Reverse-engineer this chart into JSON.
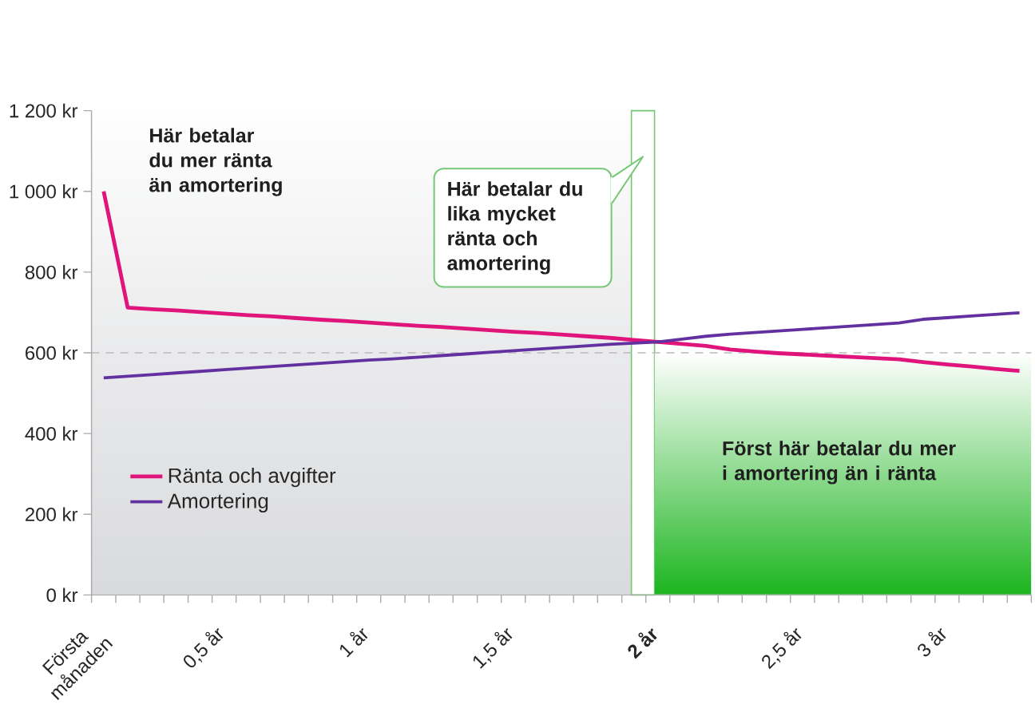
{
  "chart_data": {
    "type": "line",
    "x": [
      0.125,
      0.208,
      0.292,
      0.375,
      0.458,
      0.542,
      0.625,
      0.708,
      0.792,
      0.875,
      0.958,
      1.042,
      1.125,
      1.208,
      1.292,
      1.375,
      1.458,
      1.542,
      1.625,
      1.708,
      1.792,
      1.875,
      1.958,
      2.042,
      2.125,
      2.208,
      2.292,
      2.375,
      2.458,
      2.542,
      2.625,
      2.708,
      2.792,
      2.875,
      2.958,
      3.042,
      3.125,
      3.208,
      3.292
    ],
    "xlim": [
      0.083,
      3.333
    ],
    "xticks": [
      {
        "value": 0.083,
        "label": "Första månaden"
      },
      {
        "value": 0.167,
        "label": null
      },
      {
        "value": 0.25,
        "label": null
      },
      {
        "value": 0.333,
        "label": null
      },
      {
        "value": 0.417,
        "label": null
      },
      {
        "value": 0.5,
        "label": "0,5 år"
      },
      {
        "value": 0.583,
        "label": null
      },
      {
        "value": 0.667,
        "label": null
      },
      {
        "value": 0.75,
        "label": null
      },
      {
        "value": 0.833,
        "label": null
      },
      {
        "value": 0.917,
        "label": null
      },
      {
        "value": 1,
        "label": "1 år"
      },
      {
        "value": 1.083,
        "label": null
      },
      {
        "value": 1.167,
        "label": null
      },
      {
        "value": 1.25,
        "label": null
      },
      {
        "value": 1.333,
        "label": null
      },
      {
        "value": 1.417,
        "label": null
      },
      {
        "value": 1.5,
        "label": "1,5 år"
      },
      {
        "value": 1.583,
        "label": null
      },
      {
        "value": 1.667,
        "label": null
      },
      {
        "value": 1.75,
        "label": null
      },
      {
        "value": 1.833,
        "label": null
      },
      {
        "value": 1.917,
        "label": null
      },
      {
        "value": 2,
        "label": "**2 år**"
      },
      {
        "value": 2.083,
        "label": null
      },
      {
        "value": 2.167,
        "label": null
      },
      {
        "value": 2.25,
        "label": null
      },
      {
        "value": 2.333,
        "label": null
      },
      {
        "value": 2.417,
        "label": null
      },
      {
        "value": 2.5,
        "label": "2,5 år"
      },
      {
        "value": 2.583,
        "label": null
      },
      {
        "value": 2.667,
        "label": null
      },
      {
        "value": 2.75,
        "label": null
      },
      {
        "value": 2.833,
        "label": null
      },
      {
        "value": 2.917,
        "label": null
      },
      {
        "value": 3,
        "label": "3 år"
      },
      {
        "value": 3.083,
        "label": null
      },
      {
        "value": 3.167,
        "label": null
      },
      {
        "value": 3.25,
        "label": null
      },
      {
        "value": 3.333,
        "label": null
      }
    ],
    "ylim": [
      0,
      1200
    ],
    "yticks": [
      {
        "value": 0,
        "label": "0 kr"
      },
      {
        "value": 200,
        "label": "200 kr"
      },
      {
        "value": 400,
        "label": "400 kr"
      },
      {
        "value": 600,
        "label": "600 kr"
      },
      {
        "value": 800,
        "label": "800 kr"
      },
      {
        "value": 1000,
        "label": "1 000 kr"
      },
      {
        "value": 1200,
        "label": "1 200 kr"
      }
    ],
    "series": [
      {
        "name": "Ränta och avgifter",
        "color": "#e0157c",
        "values": [
          1000,
          712,
          708,
          705,
          701,
          697,
          693,
          690,
          686,
          682,
          679,
          675,
          671,
          667,
          664,
          660,
          656,
          652,
          649,
          645,
          641,
          637,
          632,
          627,
          622,
          617,
          608,
          603,
          599,
          596,
          593,
          590,
          587,
          584,
          577,
          571,
          566,
          560,
          555
        ]
      },
      {
        "name": "Amortering",
        "color": "#6230a0",
        "values": [
          538,
          542,
          546,
          550,
          554,
          558,
          562,
          566,
          570,
          574,
          578,
          582,
          585,
          589,
          593,
          597,
          601,
          605,
          609,
          613,
          617,
          621,
          624,
          627,
          634,
          641,
          646,
          650,
          654,
          658,
          662,
          666,
          670,
          674,
          683,
          687,
          691,
          695,
          699
        ]
      }
    ],
    "legend": "bottom left",
    "ref_lines": [
      {
        "axis": "y",
        "value": 600,
        "color": "#bbbbbb",
        "line_style": "dashed"
      }
    ],
    "bands": [
      {
        "axis": "x",
        "from": 0.083,
        "to": 1.95,
        "color": "#d9dadc",
        "label": "Här betalar du mer ränta än amortering"
      },
      {
        "axis": "x",
        "from": 1.95,
        "to": 2.03,
        "color": "#ffffff",
        "label": "Här betalar du lika mycket ränta och amortering"
      },
      {
        "axis": "x",
        "from": 2.03,
        "to": 3.333,
        "color": "#1cb51f",
        "label": "Först här betalar du mer i amortering än i ränta"
      }
    ]
  }
}
